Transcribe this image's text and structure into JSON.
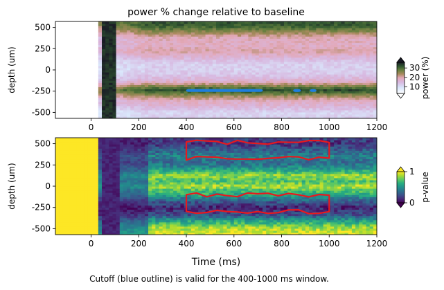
{
  "figure": {
    "caption": "Cutoff (blue outline) is valid for the 400-1000 ms window."
  },
  "chart_data": [
    {
      "type": "heatmap",
      "title": "power % change relative to baseline",
      "xlabel": "",
      "ylabel": "depth (um)",
      "xlim": [
        -150,
        1200
      ],
      "ylim": [
        -570,
        570
      ],
      "x_ticks": [
        0,
        200,
        400,
        600,
        800,
        1000,
        1200
      ],
      "y_ticks": [
        -500,
        -250,
        0,
        250,
        500
      ],
      "colorbar": {
        "label": "power (%)",
        "ticks": [
          10,
          20,
          30
        ],
        "range": [
          3,
          36
        ],
        "extend": "both",
        "colormap": "cubehelix-reversed"
      },
      "masked_region": {
        "x_range": [
          -150,
          30
        ],
        "description_color": "#ffffff"
      },
      "depth_profile": [
        {
          "depth": -560,
          "value": 12
        },
        {
          "depth": -500,
          "value": 11
        },
        {
          "depth": -420,
          "value": 16
        },
        {
          "depth": -350,
          "value": 19
        },
        {
          "depth": -280,
          "value": 27
        },
        {
          "depth": -240,
          "value": 33
        },
        {
          "depth": -200,
          "value": 28
        },
        {
          "depth": -130,
          "value": 17
        },
        {
          "depth": -50,
          "value": 13
        },
        {
          "depth": 0,
          "value": 12
        },
        {
          "depth": 80,
          "value": 12
        },
        {
          "depth": 150,
          "value": 16
        },
        {
          "depth": 220,
          "value": 20
        },
        {
          "depth": 300,
          "value": 18
        },
        {
          "depth": 380,
          "value": 19
        },
        {
          "depth": 440,
          "value": 24
        },
        {
          "depth": 520,
          "value": 31
        },
        {
          "depth": 570,
          "value": 32
        }
      ],
      "onset_band": {
        "x_range": [
          40,
          100
        ],
        "value": 36
      },
      "cutoff_contour": {
        "color": "#1e7fe0",
        "segments": [
          {
            "x": [
              400,
              720
            ],
            "y": [
              -250,
              -230
            ]
          },
          {
            "x": [
              850,
              880
            ],
            "y": [
              -255,
              -230
            ]
          },
          {
            "x": [
              920,
              945
            ],
            "y": [
              -255,
              -230
            ]
          }
        ]
      }
    },
    {
      "type": "heatmap",
      "title": "",
      "xlabel": "Time (ms)",
      "ylabel": "depth (um)",
      "xlim": [
        -150,
        1200
      ],
      "ylim": [
        -570,
        570
      ],
      "x_ticks": [
        0,
        200,
        400,
        600,
        800,
        1000,
        1200
      ],
      "y_ticks": [
        -500,
        -250,
        0,
        250,
        500
      ],
      "colorbar": {
        "label": "p-value",
        "ticks": [
          0,
          1
        ],
        "range": [
          0,
          1
        ],
        "extend": "both",
        "colormap": "viridis"
      },
      "baseline_region": {
        "x_range": [
          -150,
          30
        ],
        "value": 1
      },
      "depth_profile": [
        {
          "depth": -560,
          "value": 0.95
        },
        {
          "depth": -480,
          "value": 0.85
        },
        {
          "depth": -400,
          "value": 0.55
        },
        {
          "depth": -330,
          "value": 0.25
        },
        {
          "depth": -250,
          "value": 0.1
        },
        {
          "depth": -170,
          "value": 0.3
        },
        {
          "depth": -100,
          "value": 0.6
        },
        {
          "depth": -30,
          "value": 0.75
        },
        {
          "depth": 0,
          "value": 0.9
        },
        {
          "depth": 60,
          "value": 0.7
        },
        {
          "depth": 130,
          "value": 0.85
        },
        {
          "depth": 200,
          "value": 0.55
        },
        {
          "depth": 280,
          "value": 0.35
        },
        {
          "depth": 350,
          "value": 0.45
        },
        {
          "depth": 430,
          "value": 0.3
        },
        {
          "depth": 500,
          "value": 0.15
        },
        {
          "depth": 570,
          "value": 0.2
        }
      ],
      "onset_band": {
        "x_range": [
          50,
          120
        ],
        "value": 0.05
      },
      "significance_contour": {
        "color": "#e8191e",
        "regions": [
          {
            "x": [
              400,
              1000
            ],
            "y": [
              330,
              520
            ]
          },
          {
            "x": [
              400,
              1000
            ],
            "y": [
              -300,
              -100
            ]
          }
        ]
      }
    }
  ]
}
